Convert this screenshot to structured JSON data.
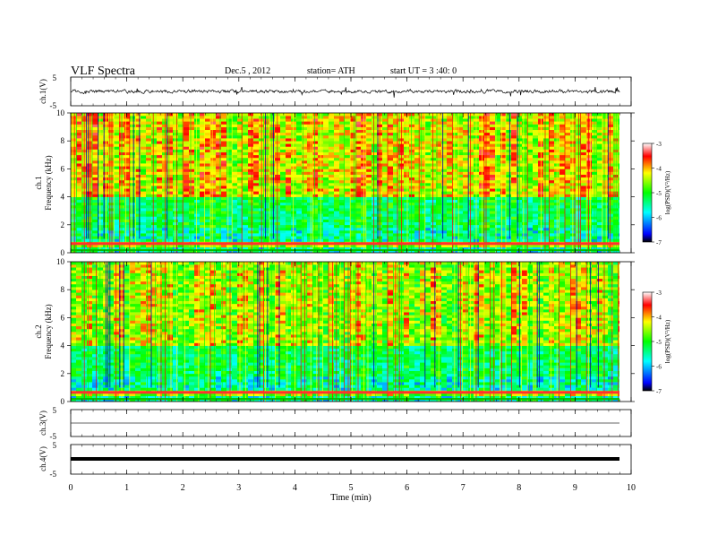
{
  "header": {
    "title": "VLF  Spectra",
    "date": "Dec.5  , 2012",
    "station": "station= ATH",
    "start": "start  UT  =   3  :40:  0"
  },
  "chart_data": {
    "type": "heatmap",
    "x_axis": {
      "label": "Time  (min)",
      "range": [
        0,
        10
      ],
      "ticks": [
        "0",
        "1",
        "2",
        "3",
        "4",
        "5",
        "6",
        "7",
        "8",
        "9",
        "10"
      ],
      "data_end": 9.8
    },
    "panels": [
      {
        "kind": "waveform",
        "ylabel": "ch.1(V)",
        "ylim": [
          -5,
          5
        ],
        "ticks": [
          "5",
          "-5"
        ],
        "activity": "noisy, amplitude about ±1.5 V with frequent spikes"
      },
      {
        "kind": "spectrogram",
        "ylabel_top": "ch.1",
        "ylabel": "Frequency  (kHz)",
        "ylim": [
          0,
          10
        ],
        "ticks": [
          "0",
          "2",
          "4",
          "6",
          "8",
          "10"
        ],
        "colorbar": {
          "label": "log(PSD)(V²/Hz)",
          "range": [
            -7,
            -3
          ],
          "ticks": [
            "-3",
            "-4",
            "-5",
            "-6",
            "-7"
          ],
          "colors": [
            "#000000",
            "#0000ff",
            "#00ffff",
            "#00ff00",
            "#ffff00",
            "#ff0000",
            "#ffffff"
          ]
        },
        "features": "broadband impulsive sferics, red/yellow above 4 kHz, green/blue banded below 4 kHz, strong line near 0.5 kHz"
      },
      {
        "kind": "spectrogram",
        "ylabel_top": "ch.2",
        "ylabel": "Frequency  (kHz)",
        "ylim": [
          0,
          10
        ],
        "ticks": [
          "0",
          "2",
          "4",
          "6",
          "8",
          "10"
        ],
        "colorbar": {
          "label": "log(PSD)(V²/Hz)",
          "range": [
            -7,
            -3
          ],
          "ticks": [
            "-3",
            "-4",
            "-5",
            "-6",
            "-7"
          ],
          "colors": [
            "#000000",
            "#0000ff",
            "#00ffff",
            "#00ff00",
            "#ffff00",
            "#ff0000",
            "#ffffff"
          ]
        },
        "features": "similar to ch.1 with slightly weaker high-frequency power"
      },
      {
        "kind": "waveform",
        "ylabel": "ch.3(V)",
        "ylim": [
          -5,
          5
        ],
        "ticks": [
          "5",
          "-5"
        ],
        "activity": "near-flat trace close to 0 V"
      },
      {
        "kind": "waveform",
        "ylabel": "ch.4(V)",
        "ylim": [
          -5,
          5
        ],
        "ticks": [
          "5",
          "-5"
        ],
        "activity": "thick constant band near 0 V"
      }
    ]
  }
}
